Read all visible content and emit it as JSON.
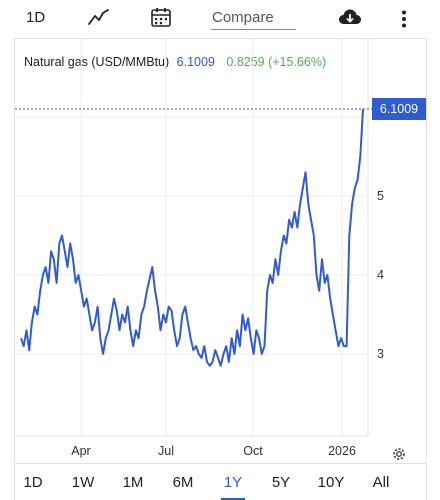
{
  "toolbar": {
    "interval": "1D",
    "compare_placeholder": "Compare",
    "icons": [
      "line-chart-icon",
      "calendar-icon",
      "cloud-download-icon",
      "more-vertical-icon"
    ]
  },
  "legend": {
    "name": "Natural gas (USD/MMBtu)",
    "last": "6.1009",
    "change": "0.8259 (+15.66%)"
  },
  "price_tag": "6.1009",
  "colors": {
    "series": "#2f5bd3",
    "change_positive": "#4caf50",
    "text": "#222222"
  },
  "chart_data": {
    "type": "line",
    "y_ticks": [
      "3",
      "4",
      "5"
    ],
    "x_ticks": [
      "Apr",
      "Jul",
      "Oct",
      "2026"
    ],
    "ylim": [
      2.5,
      6.5
    ],
    "last_value": 6.1009,
    "series": [
      {
        "values": [
          3.2,
          3.1,
          3.3,
          3.05,
          3.4,
          3.6,
          3.5,
          3.8,
          4.0,
          4.1,
          3.9,
          4.3,
          4.2,
          3.9,
          4.4,
          4.5,
          4.3,
          4.1,
          4.4,
          4.2,
          3.9,
          4.0,
          3.8,
          3.6,
          3.7,
          3.5,
          3.3,
          3.4,
          3.6,
          3.2,
          3.0,
          3.2,
          3.3,
          3.5,
          3.7,
          3.55,
          3.3,
          3.5,
          3.4,
          3.6,
          3.3,
          3.1,
          3.3,
          3.2,
          3.5,
          3.6,
          3.8,
          3.95,
          4.1,
          3.8,
          3.6,
          3.3,
          3.5,
          3.4,
          3.6,
          3.55,
          3.3,
          3.1,
          3.2,
          3.5,
          3.6,
          3.4,
          3.2,
          3.05,
          3.1,
          3.0,
          2.95,
          3.1,
          2.9,
          2.85,
          2.9,
          3.05,
          2.95,
          2.85,
          3.0,
          3.1,
          2.9,
          3.2,
          3.0,
          3.3,
          3.1,
          3.5,
          3.3,
          3.45,
          3.2,
          3.0,
          3.3,
          3.2,
          3.0,
          3.1,
          3.8,
          4.0,
          3.9,
          4.2,
          4.0,
          4.3,
          4.5,
          4.4,
          4.7,
          4.6,
          4.8,
          4.6,
          4.9,
          5.1,
          5.3,
          4.9,
          4.7,
          4.5,
          4.0,
          3.8,
          4.2,
          3.9,
          4.0,
          3.7,
          3.5,
          3.3,
          3.1,
          3.2,
          3.1,
          3.1,
          4.5,
          4.9,
          5.1,
          5.2,
          5.5,
          6.1
        ]
      }
    ]
  },
  "range": {
    "options": [
      "1D",
      "1W",
      "1M",
      "6M",
      "1Y",
      "5Y",
      "10Y",
      "All"
    ],
    "active_index": 4
  }
}
